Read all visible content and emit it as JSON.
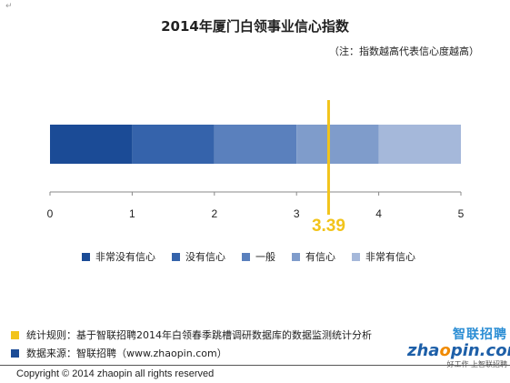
{
  "corner_mark": "↵",
  "title": "2014年厦门白领事业信心指数",
  "subtitle": "（注：指数越高代表信心度越高）",
  "chart_data": {
    "type": "bar",
    "orientation": "horizontal-stacked-scale",
    "xlim": [
      0,
      5
    ],
    "x_ticks": [
      0,
      1,
      2,
      3,
      4,
      5
    ],
    "segments": [
      {
        "name": "非常没有信心",
        "from": 0,
        "to": 1,
        "color": "#1b4b96"
      },
      {
        "name": "没有信心",
        "from": 1,
        "to": 2,
        "color": "#3563ab"
      },
      {
        "name": "一般",
        "from": 2,
        "to": 3,
        "color": "#5a80bd"
      },
      {
        "name": "有信心",
        "from": 3,
        "to": 4,
        "color": "#7f9ccb"
      },
      {
        "name": "非常有信心",
        "from": 4,
        "to": 5,
        "color": "#a5b8da"
      }
    ],
    "marker": {
      "value": 3.39,
      "label": "3.39",
      "color": "#f2c41b"
    },
    "legend_position": "bottom"
  },
  "footnotes": [
    {
      "text": "统计规则：基于智联招聘2014年白领春季跳槽调研数据库的数据监测统计分析",
      "color": "#f2c41b"
    },
    {
      "text": "数据来源：智联招聘（www.zhaopin.com）",
      "color": "#1b4b96"
    }
  ],
  "logo": {
    "cn": "智联招聘",
    "en_prefix": "zha",
    "en_accent": "o",
    "en_suffix": "pin.com",
    "slogan": "好工作  上智联招聘"
  },
  "copyright": "Copyright  ©  2014 zhaopin all rights reserved"
}
